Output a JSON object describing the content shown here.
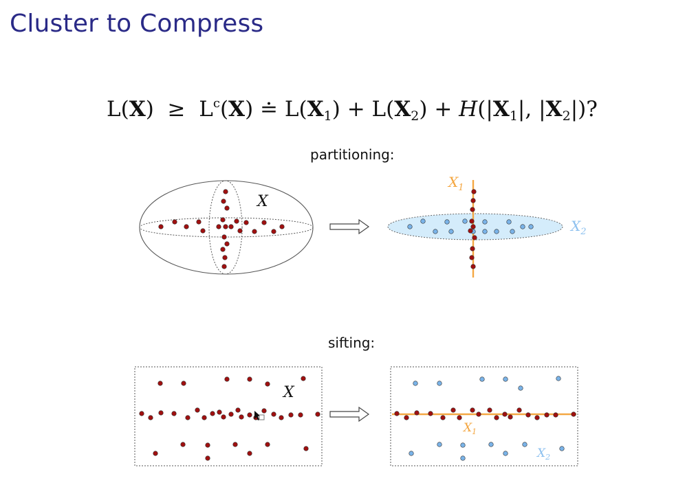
{
  "slide": {
    "title": "Cluster to Compress",
    "formula": {
      "lhs": "L(",
      "X": "X",
      "rel_ge": " ≥ ",
      "Lc": "L",
      "c": "c",
      "doteq": " ≐ ",
      "sub1": "1",
      "sub2": "2",
      "plus": " + ",
      "H": "H"
    },
    "section1": {
      "label": "partitioning:",
      "left_set_label": "X",
      "right_label_1": "X",
      "right_sub_1": "1",
      "right_label_2": "X",
      "right_sub_2": "2"
    },
    "section2": {
      "label": "sifting:",
      "left_set_label": "X",
      "right_label_1": "X",
      "right_sub_1": "1",
      "right_label_2": "X",
      "right_sub_2": "2"
    }
  },
  "colors": {
    "title": "#2a2a87",
    "red_point": "#a01010",
    "blue_point": "#7ab3e8",
    "blue_fill": "#d4ecfb",
    "orange": "#f4a742",
    "x2_label": "#8ec1ef"
  }
}
